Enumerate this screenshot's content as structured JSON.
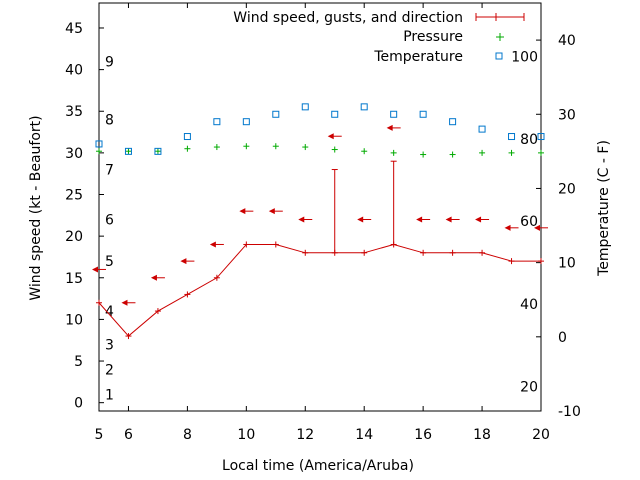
{
  "chart_data": {
    "type": "line",
    "xlabel": "Local time (America/Aruba)",
    "ylabel_left": "Wind speed (kt - Beaufort)",
    "ylabel_right": "Temperature (C - F)",
    "xlim": [
      5,
      20
    ],
    "ylim_left": [
      -1,
      48
    ],
    "ylim_right": [
      -10,
      45
    ],
    "x_ticks": [
      6,
      8,
      10,
      12,
      14,
      16,
      18,
      20
    ],
    "y_left_ticks": [
      0,
      5,
      10,
      15,
      20,
      25,
      30,
      35,
      40,
      45
    ],
    "y_right_ticks": [
      -10,
      0,
      10,
      20,
      30,
      40
    ],
    "beaufort_labels": [
      {
        "label": "1",
        "kt": 1.0
      },
      {
        "label": "2",
        "kt": 4.0
      },
      {
        "label": "3",
        "kt": 7.0
      },
      {
        "label": "4",
        "kt": 11.0
      },
      {
        "label": "5",
        "kt": 17.0
      },
      {
        "label": "6",
        "kt": 22.0
      },
      {
        "label": "7",
        "kt": 28.0
      },
      {
        "label": "8",
        "kt": 34.0
      },
      {
        "label": "9",
        "kt": 41.0
      }
    ],
    "fahrenheit_labels": [
      {
        "label": "20",
        "c": -6.7
      },
      {
        "label": "40",
        "c": 4.4
      },
      {
        "label": "60",
        "c": 15.6
      },
      {
        "label": "80",
        "c": 26.7
      },
      {
        "label": "100",
        "c": 37.8
      }
    ],
    "legend": [
      "Wind speed, gusts, and direction",
      "Pressure",
      "Temperature"
    ],
    "colors": {
      "wind": "#cc0000",
      "pressure": "#00aa00",
      "temperature": "#0077cc",
      "axis": "#000000"
    },
    "series": [
      {
        "name": "Wind speed, gusts, and direction",
        "axis": "left",
        "x": [
          5,
          6,
          7,
          8,
          9,
          10,
          11,
          12,
          13,
          14,
          15,
          16,
          17,
          18,
          19,
          20
        ],
        "values": [
          12,
          8,
          11,
          13,
          15,
          19,
          19,
          18,
          18,
          18,
          19,
          18,
          18,
          18,
          17,
          17
        ],
        "gusts": [
          null,
          null,
          null,
          null,
          null,
          null,
          null,
          null,
          28,
          null,
          29,
          null,
          null,
          null,
          null,
          null
        ],
        "direction_markers": [
          16,
          12,
          15,
          17,
          19,
          23,
          23,
          22,
          32,
          22,
          33,
          22,
          22,
          22,
          21,
          21
        ]
      },
      {
        "name": "Pressure",
        "axis": "left",
        "x": [
          5,
          6,
          7,
          8,
          9,
          10,
          11,
          12,
          13,
          14,
          15,
          16,
          17,
          18,
          19,
          20
        ],
        "values": [
          30.2,
          30.2,
          30.2,
          30.5,
          30.7,
          30.8,
          30.8,
          30.7,
          30.4,
          30.2,
          30.0,
          29.8,
          29.8,
          30.0,
          30.0,
          30.0
        ]
      },
      {
        "name": "Temperature",
        "axis": "right",
        "x": [
          5,
          6,
          7,
          8,
          9,
          10,
          11,
          12,
          13,
          14,
          15,
          16,
          17,
          18,
          19,
          20
        ],
        "values": [
          26,
          25,
          25,
          27,
          29,
          29,
          30,
          31,
          30,
          31,
          30,
          30,
          29,
          28,
          27,
          27
        ]
      }
    ]
  }
}
